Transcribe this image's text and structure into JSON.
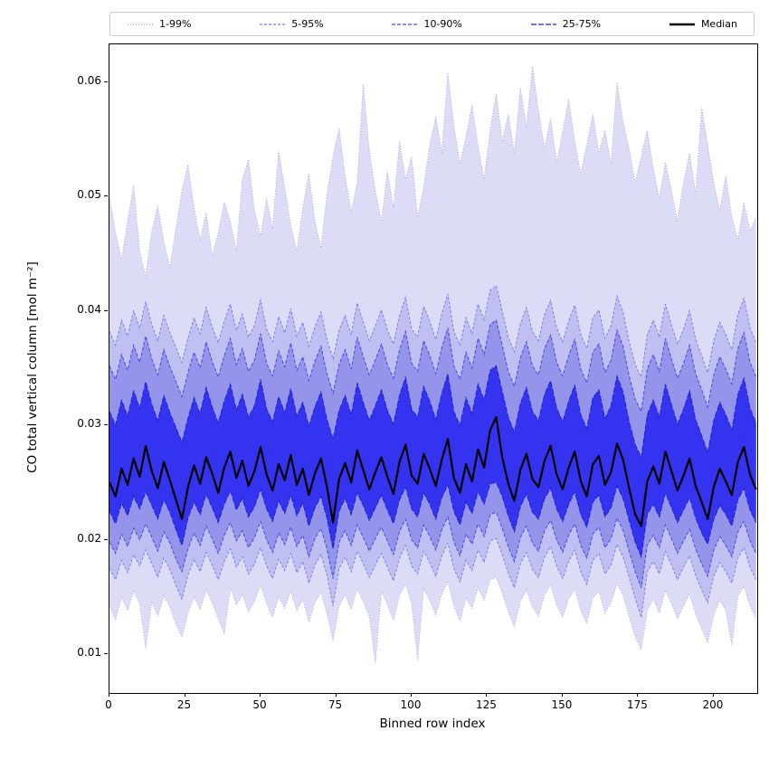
{
  "chart_data": {
    "type": "area",
    "title": "",
    "xlabel": "Binned row index",
    "ylabel": "CO total vertical column [mol m⁻²]",
    "legend_labels": [
      "1-99%",
      "5-95%",
      "10-90%",
      "25-75%",
      "Median"
    ],
    "legend_position": "top",
    "grid": false,
    "xlim": [
      0,
      214.4
    ],
    "ylim": [
      0.0066,
      0.0633
    ],
    "x_ticks": [
      0,
      25,
      50,
      75,
      100,
      125,
      150,
      175,
      200
    ],
    "y_ticks": [
      0.01,
      0.02,
      0.03,
      0.04,
      0.05,
      0.06
    ],
    "x_axis": {
      "start": 0,
      "step": 2,
      "count": 108
    },
    "value_scale": 0.0001,
    "bands": [
      {
        "label": "1-99%",
        "lower": "p1",
        "upper": "p99",
        "fill": "#dcdcf6",
        "edge": "#9b9be0",
        "dash": "1,2",
        "line_width": 0.8
      },
      {
        "label": "5-95%",
        "lower": "p5",
        "upper": "p95",
        "fill": "#bfbff1",
        "edge": "#7878e2",
        "dash": "3,2",
        "line_width": 0.9
      },
      {
        "label": "10-90%",
        "lower": "p10",
        "upper": "p90",
        "fill": "#9494ea",
        "edge": "#4a4ae0",
        "dash": "4,2",
        "line_width": 1
      },
      {
        "label": "25-75%",
        "lower": "p25",
        "upper": "p75",
        "fill": "#3333f0",
        "edge": "#2222cc",
        "dash": "6,2",
        "line_width": 1
      }
    ],
    "median": {
      "label": "Median",
      "color": "#000000",
      "line_width": 2.2
    },
    "percentiles": {
      "p1": [
        142,
        130,
        150,
        138,
        155,
        144,
        105,
        146,
        133,
        151,
        141,
        126,
        115,
        136,
        150,
        139,
        156,
        145,
        131,
        118,
        158,
        143,
        152,
        137,
        146,
        160,
        144,
        132,
        150,
        140,
        155,
        138,
        148,
        128,
        145,
        154,
        135,
        112,
        142,
        152,
        139,
        157,
        146,
        133,
        92,
        155,
        143,
        130,
        151,
        161,
        144,
        95,
        157,
        147,
        134,
        153,
        163,
        142,
        129,
        149,
        140,
        158,
        147,
        165,
        167,
        153,
        137,
        124,
        146,
        156,
        141,
        133,
        152,
        160,
        143,
        132,
        148,
        157,
        138,
        127,
        149,
        155,
        136,
        145,
        162,
        151,
        133,
        115,
        104,
        138,
        148,
        136,
        156,
        144,
        131,
        142,
        153,
        135,
        122,
        110,
        134,
        147,
        138,
        108,
        151,
        159,
        142,
        131
      ],
      "p5": [
        175,
        165,
        182,
        171,
        187,
        177,
        191,
        179,
        167,
        184,
        174,
        160,
        148,
        169,
        183,
        172,
        189,
        178,
        165,
        181,
        192,
        176,
        185,
        170,
        179,
        193,
        177,
        166,
        183,
        173,
        188,
        171,
        181,
        162,
        178,
        187,
        169,
        142,
        175,
        185,
        172,
        190,
        179,
        167,
        178,
        188,
        176,
        164,
        184,
        195,
        177,
        170,
        190,
        180,
        168,
        186,
        197,
        175,
        163,
        182,
        173,
        191,
        180,
        199,
        201,
        187,
        171,
        158,
        179,
        189,
        174,
        167,
        185,
        194,
        177,
        166,
        181,
        191,
        172,
        161,
        182,
        188,
        170,
        178,
        196,
        185,
        167,
        149,
        132,
        172,
        181,
        170,
        190,
        178,
        165,
        176,
        186,
        169,
        156,
        145,
        168,
        180,
        172,
        162,
        184,
        193,
        176,
        165
      ],
      "p10": [
        198,
        188,
        205,
        194,
        210,
        200,
        214,
        202,
        190,
        207,
        197,
        183,
        172,
        192,
        206,
        195,
        212,
        201,
        188,
        204,
        215,
        199,
        208,
        193,
        202,
        216,
        200,
        189,
        206,
        196,
        211,
        194,
        204,
        185,
        201,
        210,
        192,
        166,
        198,
        208,
        195,
        213,
        202,
        190,
        201,
        211,
        199,
        187,
        207,
        218,
        200,
        193,
        213,
        203,
        191,
        209,
        220,
        198,
        186,
        205,
        196,
        214,
        203,
        222,
        224,
        210,
        194,
        181,
        202,
        212,
        197,
        190,
        208,
        217,
        200,
        189,
        204,
        214,
        195,
        184,
        205,
        211,
        193,
        201,
        219,
        208,
        190,
        172,
        158,
        195,
        204,
        193,
        213,
        201,
        188,
        199,
        209,
        192,
        179,
        168,
        191,
        203,
        195,
        185,
        207,
        216,
        199,
        188
      ],
      "p25": [
        225,
        214,
        232,
        221,
        238,
        227,
        242,
        230,
        218,
        235,
        224,
        209,
        195,
        219,
        233,
        222,
        240,
        228,
        215,
        231,
        243,
        226,
        236,
        220,
        229,
        244,
        227,
        216,
        234,
        223,
        239,
        221,
        232,
        212,
        228,
        238,
        219,
        192,
        225,
        236,
        222,
        241,
        230,
        217,
        228,
        239,
        226,
        214,
        235,
        246,
        227,
        220,
        241,
        231,
        218,
        237,
        248,
        225,
        213,
        233,
        223,
        242,
        231,
        249,
        250,
        238,
        221,
        207,
        229,
        240,
        224,
        218,
        236,
        245,
        227,
        216,
        231,
        242,
        222,
        211,
        233,
        239,
        220,
        228,
        247,
        236,
        217,
        198,
        185,
        222,
        231,
        220,
        241,
        228,
        215,
        226,
        237,
        219,
        206,
        196,
        218,
        230,
        222,
        212,
        235,
        245,
        226,
        215
      ],
      "p75": [
        312,
        300,
        322,
        308,
        330,
        315,
        338,
        318,
        304,
        326,
        311,
        298,
        285,
        306,
        324,
        310,
        333,
        316,
        302,
        321,
        336,
        313,
        327,
        307,
        317,
        340,
        314,
        303,
        325,
        311,
        332,
        308,
        320,
        299,
        316,
        329,
        305,
        288,
        313,
        326,
        309,
        337,
        320,
        304,
        317,
        331,
        313,
        301,
        326,
        342,
        314,
        307,
        334,
        321,
        305,
        328,
        345,
        312,
        300,
        324,
        310,
        336,
        322,
        348,
        352,
        330,
        307,
        294,
        319,
        333,
        312,
        304,
        327,
        339,
        315,
        303,
        321,
        335,
        309,
        297,
        324,
        331,
        306,
        317,
        343,
        329,
        303,
        283,
        272,
        309,
        322,
        307,
        336,
        318,
        301,
        314,
        330,
        305,
        291,
        276,
        304,
        320,
        309,
        296,
        327,
        341,
        315,
        302
      ],
      "p90": [
        352,
        340,
        362,
        348,
        370,
        355,
        378,
        358,
        344,
        366,
        351,
        338,
        325,
        346,
        364,
        350,
        373,
        356,
        342,
        361,
        376,
        353,
        367,
        347,
        357,
        380,
        354,
        343,
        365,
        351,
        372,
        348,
        360,
        339,
        356,
        369,
        345,
        328,
        353,
        366,
        349,
        377,
        360,
        344,
        357,
        371,
        353,
        341,
        366,
        382,
        354,
        347,
        374,
        361,
        345,
        368,
        385,
        352,
        340,
        364,
        350,
        376,
        362,
        388,
        392,
        370,
        347,
        334,
        359,
        373,
        352,
        344,
        367,
        379,
        355,
        343,
        361,
        375,
        349,
        337,
        364,
        371,
        346,
        357,
        383,
        369,
        343,
        323,
        312,
        349,
        362,
        347,
        376,
        358,
        341,
        354,
        370,
        345,
        331,
        316,
        344,
        360,
        349,
        336,
        367,
        381,
        355,
        342
      ],
      "p95": [
        382,
        370,
        392,
        378,
        400,
        385,
        408,
        388,
        374,
        396,
        381,
        368,
        355,
        376,
        394,
        380,
        403,
        386,
        372,
        391,
        406,
        383,
        397,
        377,
        387,
        410,
        384,
        373,
        395,
        381,
        402,
        378,
        390,
        369,
        386,
        399,
        375,
        358,
        383,
        396,
        379,
        407,
        390,
        374,
        387,
        401,
        383,
        371,
        396,
        412,
        384,
        377,
        404,
        391,
        375,
        398,
        415,
        382,
        370,
        394,
        380,
        406,
        392,
        418,
        422,
        400,
        377,
        364,
        389,
        403,
        382,
        374,
        397,
        409,
        385,
        373,
        391,
        405,
        379,
        367,
        394,
        401,
        376,
        387,
        413,
        399,
        373,
        353,
        342,
        379,
        392,
        377,
        406,
        388,
        371,
        384,
        400,
        375,
        361,
        346,
        374,
        390,
        379,
        366,
        397,
        411,
        385,
        372
      ],
      "p99": [
        500,
        468,
        445,
        478,
        510,
        452,
        430,
        470,
        492,
        460,
        438,
        472,
        505,
        528,
        490,
        462,
        486,
        448,
        468,
        495,
        478,
        452,
        515,
        532,
        488,
        465,
        498,
        472,
        540,
        508,
        475,
        452,
        490,
        520,
        478,
        455,
        502,
        535,
        560,
        518,
        486,
        512,
        598,
        540,
        505,
        478,
        522,
        490,
        548,
        515,
        535,
        482,
        508,
        545,
        570,
        538,
        608,
        562,
        528,
        552,
        580,
        545,
        515,
        558,
        590,
        548,
        572,
        538,
        595,
        560,
        614,
        575,
        542,
        568,
        530,
        556,
        585,
        548,
        520,
        545,
        572,
        538,
        558,
        528,
        600,
        565,
        542,
        512,
        535,
        558,
        525,
        498,
        530,
        505,
        478,
        512,
        538,
        502,
        578,
        545,
        512,
        488,
        518,
        482,
        462,
        495,
        470,
        482
      ]
    },
    "median_values": [
      250,
      238,
      262,
      248,
      271,
      255,
      282,
      260,
      245,
      268,
      252,
      235,
      218,
      246,
      265,
      249,
      272,
      258,
      241,
      263,
      277,
      254,
      269,
      247,
      260,
      281,
      257,
      243,
      266,
      252,
      274,
      248,
      262,
      239,
      258,
      271,
      246,
      215,
      253,
      267,
      250,
      278,
      261,
      244,
      259,
      272,
      255,
      240,
      268,
      283,
      256,
      249,
      275,
      262,
      247,
      270,
      288,
      254,
      241,
      266,
      251,
      279,
      263,
      296,
      307,
      272,
      249,
      234,
      261,
      275,
      253,
      246,
      269,
      282,
      257,
      244,
      263,
      277,
      251,
      238,
      266,
      273,
      248,
      259,
      284,
      270,
      245,
      222,
      212,
      251,
      264,
      249,
      277,
      260,
      243,
      256,
      271,
      247,
      233,
      218,
      246,
      262,
      251,
      239,
      268,
      281,
      257,
      244
    ]
  }
}
